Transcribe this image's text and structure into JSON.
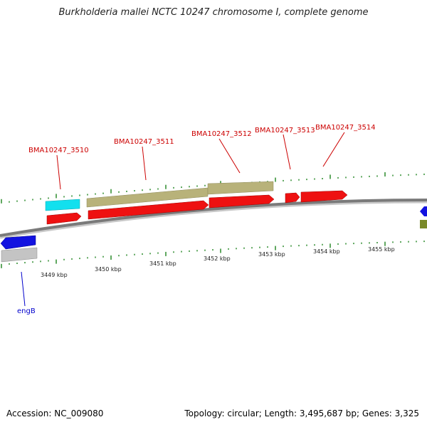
{
  "title": "Burkholderia mallei NCTC 10247 chromosome I, complete genome",
  "colors": {
    "backbone": "#7a7a7a",
    "cds_forward": "#ee1111",
    "gene_forward": "#b8b27a",
    "cds_reverse": "#1212e0",
    "gene_reverse": "#c4c4c4",
    "rna": "#12e0ee",
    "other": "#7a8a2a",
    "tick": "#2a8a2a",
    "label_red": "#cc0000",
    "label_blue": "#0000cc"
  },
  "genes": [
    {
      "name": "BMA10247_3510",
      "color": "label_red"
    },
    {
      "name": "BMA10247_3511",
      "color": "label_red"
    },
    {
      "name": "BMA10247_3512",
      "color": "label_red"
    },
    {
      "name": "BMA10247_3513",
      "color": "label_red"
    },
    {
      "name": "BMA10247_3514",
      "color": "label_red"
    },
    {
      "name": "engB",
      "color": "label_blue"
    }
  ],
  "scale_labels": [
    "3449 kbp",
    "3450 kbp",
    "3451 kbp",
    "3452 kbp",
    "3453 kbp",
    "3454 kbp",
    "3455 kbp"
  ],
  "footer": {
    "accession": "Accession: NC_009080",
    "info": "Topology: circular; Length: 3,495,687 bp; Genes: 3,325"
  }
}
